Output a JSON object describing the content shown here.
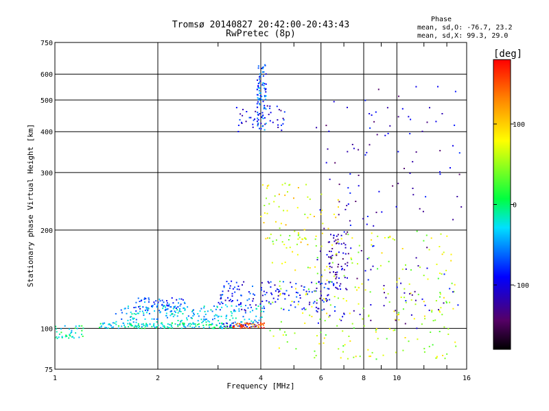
{
  "chart_data": {
    "type": "scatter",
    "title": "Tromsø 20140827 20:42:00-20:43:43",
    "subtitle": "RwPretec (8p)",
    "xlabel": "Frequency [MHz]",
    "ylabel": "Stationary phase Virtual Height [km]",
    "x_scale": "log",
    "y_scale": "log",
    "xlim": [
      1,
      16
    ],
    "ylim": [
      75,
      750
    ],
    "x_ticks": [
      1,
      2,
      4,
      6,
      8,
      10,
      16
    ],
    "x_tick_labels": [
      "1",
      "2",
      "4",
      "6",
      "8",
      "10",
      "16"
    ],
    "y_ticks": [
      75,
      100,
      200,
      300,
      400,
      500,
      600,
      750
    ],
    "y_tick_labels": [
      "75",
      "100",
      "200",
      "300",
      "400",
      "500",
      "600",
      "750"
    ],
    "grid": true,
    "stats": {
      "header": "Phase",
      "line_o": "mean, sd,O: -76.7, 23.2",
      "line_x": "mean, sd,X:  99.3, 29.0"
    },
    "colorbar": {
      "label": "[deg]",
      "range": [
        -180,
        180
      ],
      "ticks": [
        100,
        0,
        -100
      ],
      "tick_labels": [
        "100",
        "0",
        "-100"
      ]
    },
    "traces": [
      {
        "x_range": [
          1.0,
          1.22
        ],
        "y_range": [
          93,
          102
        ],
        "phase": -10,
        "count": 40
      },
      {
        "x_range": [
          1.35,
          3.3
        ],
        "y_range": [
          100,
          104
        ],
        "phase": -20,
        "count": 160
      },
      {
        "x_range": [
          1.5,
          4.1
        ],
        "y_range": [
          104,
          118
        ],
        "phase": -40,
        "count": 180
      },
      {
        "x_range": [
          1.7,
          2.4
        ],
        "y_range": [
          112,
          124
        ],
        "phase": -70,
        "count": 70
      },
      {
        "x_range": [
          3.1,
          4.0
        ],
        "y_range": [
          101,
          104
        ],
        "phase": -100,
        "count": 30
      },
      {
        "x_range": [
          3.3,
          4.1
        ],
        "y_range": [
          100,
          104
        ],
        "phase": 150,
        "count": 45
      },
      {
        "x_range": [
          3.0,
          6.6
        ],
        "y_range": [
          113,
          140
        ],
        "phase": -90,
        "count": 160
      },
      {
        "x_range": [
          3.9,
          4.15
        ],
        "y_range": [
          400,
          660
        ],
        "phase": -70,
        "count": 90
      },
      {
        "x_range": [
          3.4,
          4.7
        ],
        "y_range": [
          400,
          480
        ],
        "phase": -100,
        "count": 40
      },
      {
        "x_range": [
          4.0,
          6.8
        ],
        "y_range": [
          180,
          280
        ],
        "phase": 80,
        "count": 60
      },
      {
        "x_range": [
          4.2,
          15.0
        ],
        "y_range": [
          80,
          200
        ],
        "phase": 60,
        "count": 260
      },
      {
        "x_range": [
          5.8,
          15.5
        ],
        "y_range": [
          100,
          560
        ],
        "phase": -110,
        "count": 160
      },
      {
        "x_range": [
          6.3,
          7.2
        ],
        "y_range": [
          130,
          200
        ],
        "phase": -120,
        "count": 60
      }
    ]
  }
}
